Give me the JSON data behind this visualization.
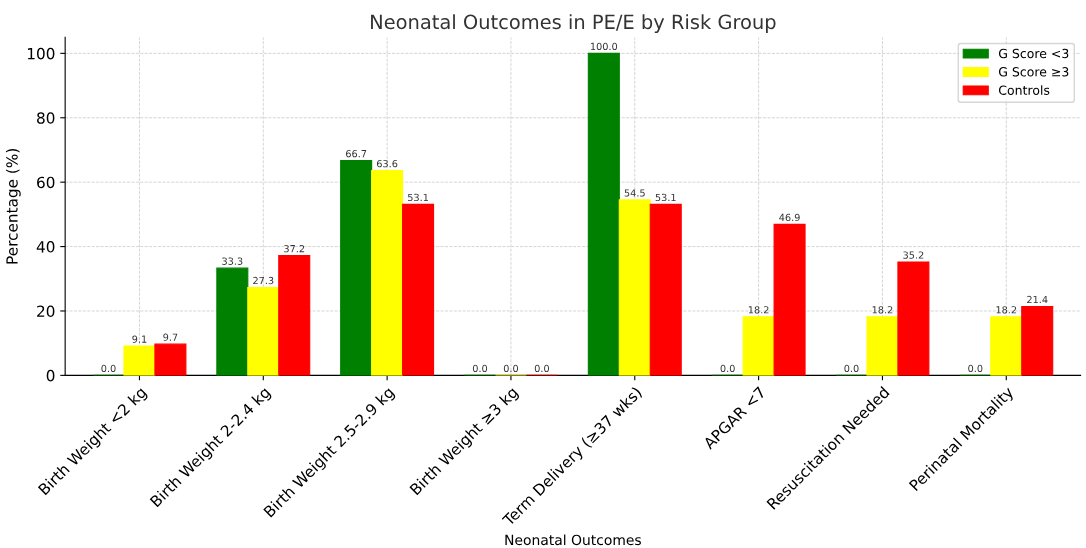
{
  "chart_data": {
    "type": "bar",
    "title": "Neonatal Outcomes in PE/E by Risk Group",
    "xlabel": "Neonatal Outcomes",
    "ylabel": "Percentage (%)",
    "categories": [
      "Birth Weight <2 kg",
      "Birth Weight 2-2.4 kg",
      "Birth Weight 2.5-2.9 kg",
      "Birth Weight ≥3 kg",
      "Term Delivery (≥37 wks)",
      "APGAR <7",
      "Resuscitation Needed",
      "Perinatal Mortality"
    ],
    "series": [
      {
        "name": "G Score <3",
        "color": "#008000",
        "values": [
          0.0,
          33.3,
          66.7,
          0.0,
          100.0,
          0.0,
          0.0,
          0.0
        ],
        "value_labels": [
          "0.0",
          "33.3",
          "66.7",
          "0.0",
          "100.0",
          "0.0",
          "0.0",
          "0.0"
        ]
      },
      {
        "name": "G Score ≥3",
        "color": "#ffff00",
        "values": [
          9.1,
          27.3,
          63.6,
          0.0,
          54.5,
          18.2,
          18.2,
          18.2
        ],
        "value_labels": [
          "9.1",
          "27.3",
          "63.6",
          "0.0",
          "54.5",
          "18.2",
          "18.2",
          "18.2"
        ]
      },
      {
        "name": "Controls",
        "color": "#ff0000",
        "values": [
          9.7,
          37.2,
          53.1,
          0.0,
          53.1,
          46.9,
          35.2,
          21.4
        ],
        "value_labels": [
          "9.7",
          "37.2",
          "53.1",
          "0.0",
          "53.1",
          "46.9",
          "35.2",
          "21.4"
        ]
      }
    ],
    "ylim": [
      0,
      105
    ],
    "yticks": [
      0,
      20,
      40,
      60,
      80,
      100
    ],
    "grid": true,
    "legend": "top right"
  }
}
